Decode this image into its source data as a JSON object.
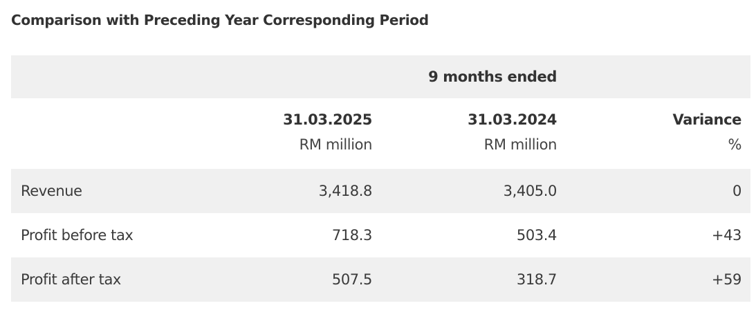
{
  "title": "Comparison with Preceding Year Corresponding Period",
  "table": {
    "group_header": "9 months ended",
    "columns": [
      {
        "heading": "31.03.2025",
        "unit": "RM million"
      },
      {
        "heading": "31.03.2024",
        "unit": "RM million"
      },
      {
        "heading": "Variance",
        "unit": "%"
      }
    ],
    "rows": [
      {
        "label": "Revenue",
        "current": "3,418.8",
        "previous": "3,405.0",
        "variance": "0"
      },
      {
        "label": "Profit before tax",
        "current": "718.3",
        "previous": "503.4",
        "variance": "+43"
      },
      {
        "label": "Profit after tax",
        "current": "507.5",
        "previous": "318.7",
        "variance": "+59"
      }
    ]
  },
  "colors": {
    "row_shade": "#f0f0f0",
    "text": "#3a3a3a"
  }
}
